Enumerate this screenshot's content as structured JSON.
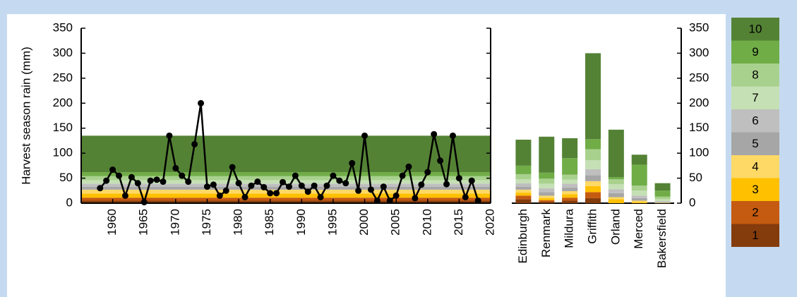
{
  "chart_data": [
    {
      "type": "line",
      "ylabel": "Harvest season rain (mm)",
      "x": [
        1958,
        1959,
        1960,
        1961,
        1962,
        1963,
        1964,
        1965,
        1966,
        1967,
        1968,
        1969,
        1970,
        1971,
        1972,
        1973,
        1974,
        1975,
        1976,
        1977,
        1978,
        1979,
        1980,
        1981,
        1982,
        1983,
        1984,
        1985,
        1986,
        1987,
        1988,
        1989,
        1990,
        1991,
        1992,
        1993,
        1994,
        1995,
        1996,
        1997,
        1998,
        1999,
        2000,
        2001,
        2002,
        2003,
        2004,
        2005,
        2006,
        2007,
        2008,
        2009,
        2010,
        2011,
        2012,
        2013,
        2014,
        2015,
        2016,
        2017,
        2018
      ],
      "values": [
        30,
        45,
        67,
        55,
        15,
        52,
        40,
        2,
        45,
        47,
        43,
        135,
        70,
        55,
        43,
        118,
        200,
        33,
        37,
        15,
        25,
        72,
        40,
        12,
        35,
        43,
        32,
        20,
        20,
        42,
        33,
        55,
        35,
        23,
        35,
        12,
        35,
        55,
        45,
        40,
        80,
        25,
        135,
        27,
        5,
        33,
        5,
        15,
        55,
        73,
        10,
        37,
        62,
        138,
        85,
        38,
        135,
        50,
        12,
        45,
        5
      ],
      "color": "#000000",
      "bands": [
        5,
        6,
        8,
        8,
        6,
        6,
        7,
        8,
        8,
        73
      ],
      "xlim": [
        1955,
        2020
      ],
      "xticks": [
        1960,
        1965,
        1970,
        1975,
        1980,
        1985,
        1990,
        1995,
        2000,
        2005,
        2010,
        2015,
        2020
      ],
      "ylim": [
        0,
        350
      ],
      "yticks": [
        0,
        50,
        100,
        150,
        200,
        250,
        300,
        350
      ]
    },
    {
      "type": "stacked-bar",
      "categories": [
        "Edinburgh",
        "Renmark",
        "Mildura",
        "Griffith",
        "Orland",
        "Merced",
        "Bakersfield"
      ],
      "series": [
        {
          "name": "1",
          "color": "#843c0c",
          "values": [
            8,
            3,
            5,
            10,
            0,
            0,
            0
          ]
        },
        {
          "name": "2",
          "color": "#c55a11",
          "values": [
            7,
            3,
            6,
            12,
            0,
            0,
            0
          ]
        },
        {
          "name": "3",
          "color": "#ffc000",
          "values": [
            6,
            4,
            7,
            12,
            8,
            2,
            0
          ]
        },
        {
          "name": "4",
          "color": "#ffd966",
          "values": [
            6,
            5,
            6,
            10,
            4,
            3,
            1
          ]
        },
        {
          "name": "5",
          "color": "#a6a6a6",
          "values": [
            6,
            7,
            7,
            12,
            8,
            5,
            1
          ]
        },
        {
          "name": "6",
          "color": "#bfbfbf",
          "values": [
            7,
            8,
            8,
            12,
            8,
            5,
            2
          ]
        },
        {
          "name": "7",
          "color": "#c5e0b4",
          "values": [
            8,
            9,
            8,
            18,
            10,
            10,
            4
          ]
        },
        {
          "name": "8",
          "color": "#a9d18e",
          "values": [
            10,
            10,
            10,
            22,
            10,
            10,
            5
          ]
        },
        {
          "name": "9",
          "color": "#70ad47",
          "values": [
            17,
            12,
            33,
            20,
            4,
            42,
            12
          ]
        },
        {
          "name": "10",
          "color": "#548235",
          "values": [
            52,
            72,
            40,
            172,
            95,
            20,
            15
          ]
        }
      ],
      "ylim": [
        0,
        350
      ],
      "yticks": [
        0,
        50,
        100,
        150,
        200,
        250,
        300,
        350
      ],
      "legend": "right"
    }
  ]
}
